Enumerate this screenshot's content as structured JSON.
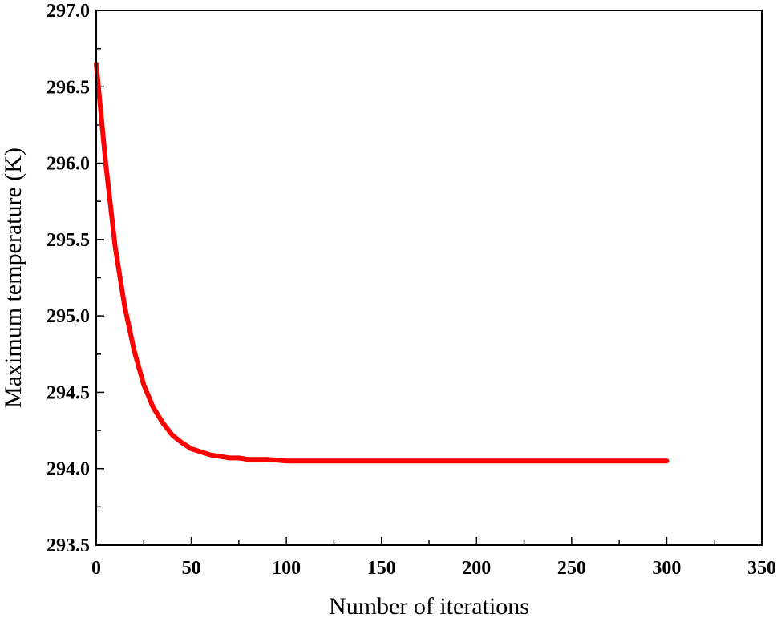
{
  "chart_data": {
    "type": "line",
    "title": "",
    "xlabel": "Number of iterations",
    "ylabel": "Maximum temperature (K)",
    "xlim": [
      0,
      350
    ],
    "ylim": [
      293.5,
      297.0
    ],
    "x_ticks": [
      0,
      50,
      100,
      150,
      200,
      250,
      300,
      350
    ],
    "x_tick_labels": [
      "0",
      "50",
      "100",
      "150",
      "200",
      "250",
      "300",
      "350"
    ],
    "y_ticks": [
      293.5,
      294.0,
      294.5,
      295.0,
      295.5,
      296.0,
      296.5,
      297.0
    ],
    "y_tick_labels": [
      "293.5",
      "294.0",
      "294.5",
      "295.0",
      "295.5",
      "296.0",
      "296.5",
      "297.0"
    ],
    "grid": false,
    "legend": "none",
    "series": [
      {
        "color": "#ff0000",
        "x": [
          0,
          2,
          5,
          10,
          15,
          20,
          25,
          30,
          35,
          40,
          45,
          50,
          55,
          60,
          65,
          70,
          75,
          80,
          85,
          90,
          100,
          110,
          120,
          150,
          200,
          250,
          300
        ],
        "y": [
          296.65,
          296.39,
          296.0,
          295.45,
          295.06,
          294.77,
          294.55,
          294.4,
          294.3,
          294.22,
          294.17,
          294.13,
          294.11,
          294.09,
          294.08,
          294.07,
          294.07,
          294.06,
          294.06,
          294.06,
          294.05,
          294.05,
          294.05,
          294.05,
          294.05,
          294.05,
          294.05
        ]
      }
    ]
  }
}
